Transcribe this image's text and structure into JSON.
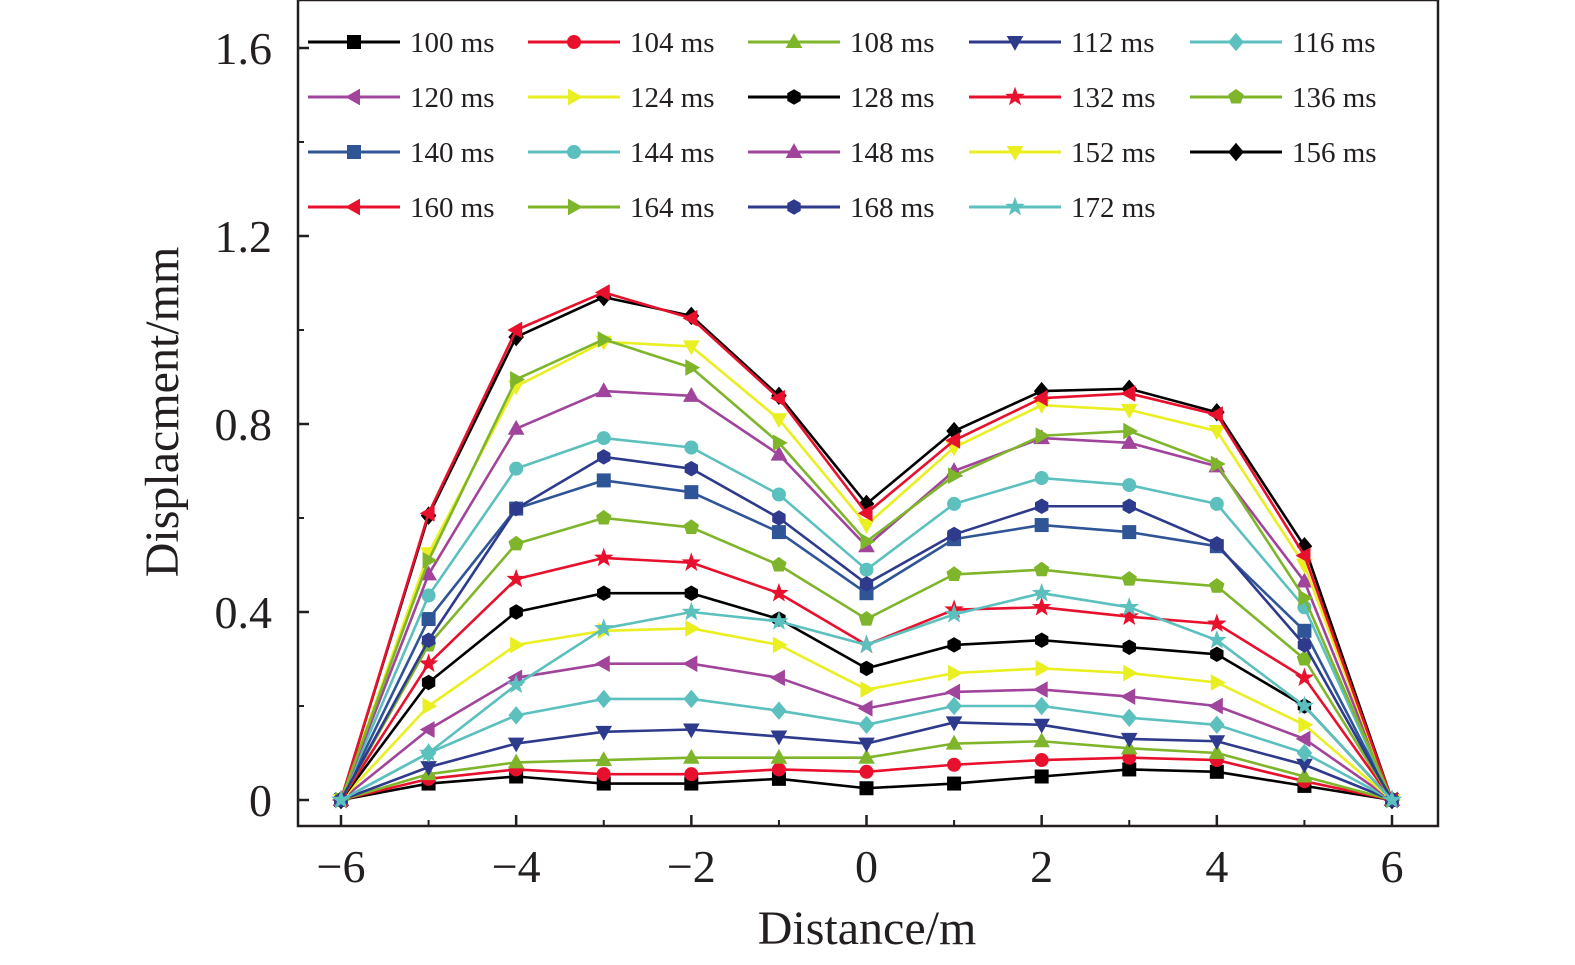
{
  "chart_data": {
    "type": "line",
    "title": "",
    "xlabel": "Distance/m",
    "ylabel": "Displacment/mm",
    "xlim": [
      -6.5,
      6.5
    ],
    "ylim": [
      -0.05,
      1.7
    ],
    "xticks": [
      -6,
      -4,
      -2,
      0,
      2,
      4,
      6
    ],
    "xtick_labels": [
      "−6",
      "−4",
      "−2",
      "0",
      "2",
      "4",
      "6"
    ],
    "yticks": [
      0,
      0.4,
      0.8,
      1.2,
      1.6
    ],
    "ytick_labels": [
      "0",
      "0.4",
      "0.8",
      "1.2",
      "1.6"
    ],
    "grid": false,
    "legend_position": "top, inside plot, 5 columns",
    "x": [
      -6,
      -5,
      -4,
      -3,
      -2,
      -1,
      0,
      1,
      2,
      3,
      4,
      5,
      6
    ],
    "series": [
      {
        "name": "100 ms",
        "color": "#000000",
        "marker": "square",
        "values": [
          0,
          0.035,
          0.05,
          0.035,
          0.035,
          0.045,
          0.025,
          0.035,
          0.05,
          0.065,
          0.06,
          0.03,
          0
        ]
      },
      {
        "name": "104 ms",
        "color": "#e8112d",
        "marker": "circle",
        "values": [
          0,
          0.045,
          0.065,
          0.055,
          0.055,
          0.065,
          0.06,
          0.075,
          0.085,
          0.09,
          0.085,
          0.04,
          0
        ]
      },
      {
        "name": "108 ms",
        "color": "#7fb52b",
        "marker": "triangle-up",
        "values": [
          0,
          0.055,
          0.08,
          0.085,
          0.09,
          0.09,
          0.09,
          0.12,
          0.125,
          0.11,
          0.1,
          0.05,
          0
        ]
      },
      {
        "name": "112 ms",
        "color": "#2e3a8c",
        "marker": "triangle-down",
        "values": [
          0,
          0.07,
          0.12,
          0.145,
          0.15,
          0.135,
          0.12,
          0.165,
          0.16,
          0.13,
          0.125,
          0.075,
          0
        ]
      },
      {
        "name": "116 ms",
        "color": "#5bc0be",
        "marker": "diamond",
        "values": [
          0,
          0.1,
          0.18,
          0.215,
          0.215,
          0.19,
          0.16,
          0.2,
          0.2,
          0.175,
          0.16,
          0.1,
          0
        ]
      },
      {
        "name": "120 ms",
        "color": "#a0449c",
        "marker": "triangle-left",
        "values": [
          0,
          0.15,
          0.26,
          0.29,
          0.29,
          0.26,
          0.195,
          0.23,
          0.235,
          0.22,
          0.2,
          0.13,
          0
        ]
      },
      {
        "name": "124 ms",
        "color": "#e9ef20",
        "marker": "triangle-right",
        "values": [
          0,
          0.2,
          0.33,
          0.36,
          0.365,
          0.33,
          0.235,
          0.27,
          0.28,
          0.27,
          0.25,
          0.16,
          0
        ]
      },
      {
        "name": "128 ms",
        "color": "#000000",
        "marker": "hexagon",
        "values": [
          0,
          0.25,
          0.4,
          0.44,
          0.44,
          0.385,
          0.28,
          0.33,
          0.34,
          0.325,
          0.31,
          0.2,
          0
        ]
      },
      {
        "name": "132 ms",
        "color": "#e8112d",
        "marker": "star",
        "values": [
          0,
          0.29,
          0.47,
          0.515,
          0.505,
          0.44,
          0.33,
          0.405,
          0.41,
          0.39,
          0.375,
          0.26,
          0
        ]
      },
      {
        "name": "136 ms",
        "color": "#7fb52b",
        "marker": "pentagon",
        "values": [
          0,
          0.33,
          0.545,
          0.6,
          0.58,
          0.5,
          0.385,
          0.48,
          0.49,
          0.47,
          0.455,
          0.3,
          0
        ]
      },
      {
        "name": "140 ms",
        "color": "#2f5597",
        "marker": "square",
        "values": [
          0,
          0.385,
          0.62,
          0.68,
          0.655,
          0.57,
          0.44,
          0.555,
          0.585,
          0.57,
          0.54,
          0.36,
          0
        ]
      },
      {
        "name": "144 ms",
        "color": "#5bc0be",
        "marker": "circle",
        "values": [
          0,
          0.435,
          0.705,
          0.77,
          0.75,
          0.65,
          0.49,
          0.63,
          0.685,
          0.67,
          0.63,
          0.41,
          0
        ]
      },
      {
        "name": "148 ms",
        "color": "#a0449c",
        "marker": "triangle-up",
        "values": [
          0,
          0.48,
          0.79,
          0.87,
          0.86,
          0.735,
          0.54,
          0.7,
          0.77,
          0.76,
          0.71,
          0.465,
          0
        ]
      },
      {
        "name": "152 ms",
        "color": "#e9ef20",
        "marker": "triangle-down",
        "values": [
          0,
          0.525,
          0.88,
          0.975,
          0.965,
          0.81,
          0.585,
          0.75,
          0.84,
          0.83,
          0.785,
          0.5,
          0
        ]
      },
      {
        "name": "156 ms",
        "color": "#000000",
        "marker": "diamond",
        "values": [
          0,
          0.605,
          0.985,
          1.07,
          1.03,
          0.86,
          0.63,
          0.785,
          0.87,
          0.875,
          0.825,
          0.54,
          0
        ]
      },
      {
        "name": "160 ms",
        "color": "#e8112d",
        "marker": "triangle-left",
        "values": [
          0,
          0.61,
          1.0,
          1.08,
          1.025,
          0.855,
          0.61,
          0.765,
          0.855,
          0.865,
          0.82,
          0.52,
          0
        ]
      },
      {
        "name": "164 ms",
        "color": "#7fb52b",
        "marker": "triangle-right",
        "values": [
          0,
          0.51,
          0.895,
          0.98,
          0.92,
          0.76,
          0.55,
          0.69,
          0.775,
          0.785,
          0.715,
          0.43,
          0
        ]
      },
      {
        "name": "168 ms",
        "color": "#2e3a8c",
        "marker": "hexagon",
        "values": [
          0,
          0.34,
          0.62,
          0.73,
          0.705,
          0.6,
          0.46,
          0.565,
          0.625,
          0.625,
          0.545,
          0.33,
          0
        ]
      },
      {
        "name": "172 ms",
        "color": "#5bc0be",
        "marker": "star",
        "values": [
          0,
          0.1,
          0.245,
          0.365,
          0.4,
          0.38,
          0.33,
          0.395,
          0.44,
          0.41,
          0.34,
          0.2,
          0
        ]
      }
    ]
  }
}
